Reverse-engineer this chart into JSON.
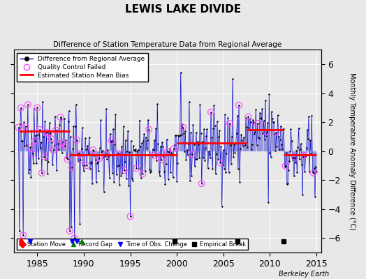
{
  "title": "LEWIS LAKE DIVIDE",
  "subtitle": "Difference of Station Temperature Data from Regional Average",
  "ylabel": "Monthly Temperature Anomaly Difference (°C)",
  "xlabel_credit": "Berkeley Earth",
  "xlim": [
    1982.5,
    2015.5
  ],
  "ylim": [
    -7,
    7
  ],
  "yticks": [
    -6,
    -4,
    -2,
    0,
    2,
    4,
    6
  ],
  "xticks": [
    1985,
    1990,
    1995,
    2000,
    2005,
    2010,
    2015
  ],
  "bg_color": "#e8e8e8",
  "line_color": "#0000cc",
  "bias_color": "#ff0000",
  "qc_color": "#ff44ff",
  "seed": 42,
  "station_moves": [
    1983.25
  ],
  "record_gaps": [
    1989.75
  ],
  "obs_changes": [
    1984.25,
    1988.75,
    1989.25
  ],
  "empirical_breaks": [
    1999.75,
    2006.5,
    2011.5
  ],
  "bias_segments": [
    {
      "x_start": 1983.0,
      "x_end": 1988.5,
      "bias": 1.4
    },
    {
      "x_start": 1988.5,
      "x_end": 1993.5,
      "bias": -0.25
    },
    {
      "x_start": 1993.5,
      "x_end": 2000.0,
      "bias": -0.25
    },
    {
      "x_start": 2000.0,
      "x_end": 2004.5,
      "bias": 0.55
    },
    {
      "x_start": 2004.5,
      "x_end": 2007.5,
      "bias": 0.55
    },
    {
      "x_start": 2007.5,
      "x_end": 2011.5,
      "bias": 1.5
    },
    {
      "x_start": 2011.5,
      "x_end": 2015.0,
      "bias": -0.25
    }
  ]
}
